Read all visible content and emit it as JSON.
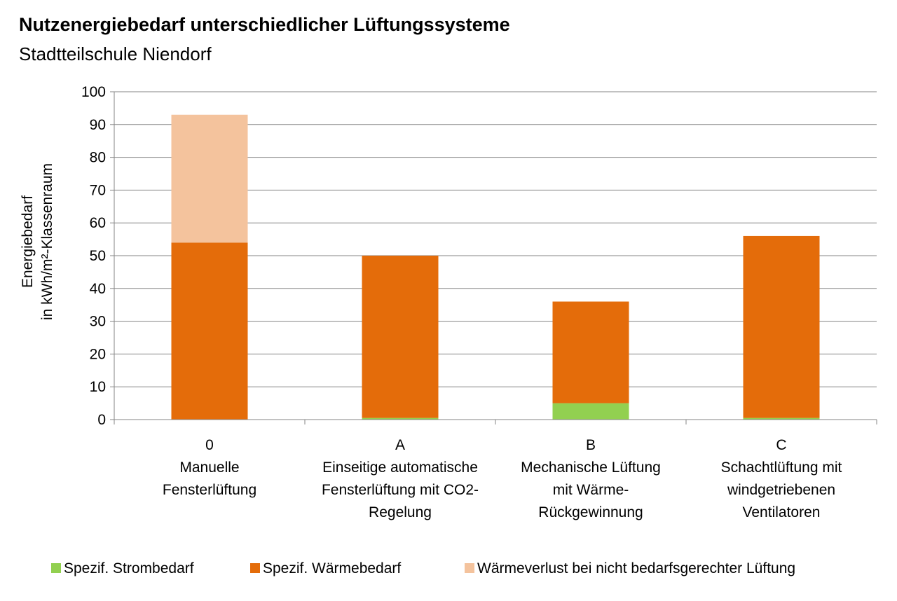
{
  "chart_data": {
    "type": "bar",
    "stacked": true,
    "title": "Nutzenergiebedarf unterschiedlicher Lüftungssysteme",
    "subtitle": "Stadtteilschule Niendorf",
    "ylabel_lines": [
      "Energiebedarf",
      "in kWh/m²-Klassenraum"
    ],
    "ylim": [
      0,
      100
    ],
    "yticks": [
      0,
      10,
      20,
      30,
      40,
      50,
      60,
      70,
      80,
      90,
      100
    ],
    "grid": true,
    "legend_position": "bottom",
    "categories": [
      [
        "0",
        "Manuelle",
        "Fensterlüftung"
      ],
      [
        "A",
        "Einseitige automatische",
        "Fensterlüftung mit CO2-",
        "Regelung"
      ],
      [
        "B",
        "Mechanische Lüftung",
        "mit Wärme-",
        "Rückgewinnung"
      ],
      [
        "C",
        "Schachtlüftung mit",
        "windgetriebenen",
        "Ventilatoren"
      ]
    ],
    "series": [
      {
        "name": "Spezif. Strombedarf",
        "color": "#92d050",
        "values": [
          0,
          0.5,
          5,
          0.5
        ]
      },
      {
        "name": "Spezif. Wärmebedarf",
        "color": "#e46c0a",
        "values": [
          54,
          49.5,
          31,
          55.5
        ]
      },
      {
        "name": "Wärmeverlust bei nicht bedarfsgerechter Lüftung",
        "color": "#f4c39d",
        "values": [
          39,
          0,
          0,
          0
        ]
      }
    ]
  }
}
